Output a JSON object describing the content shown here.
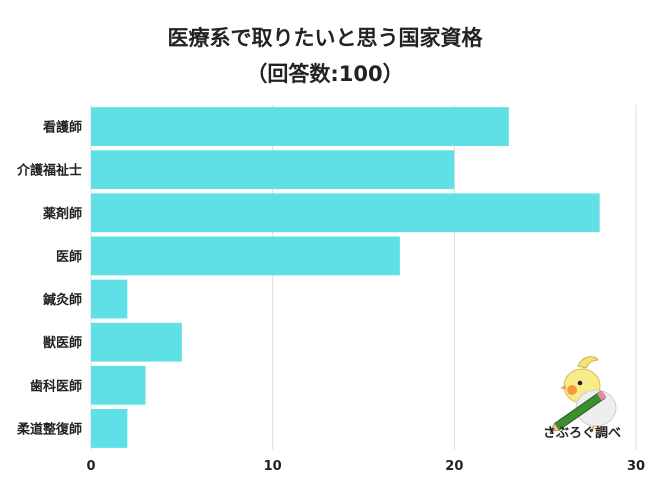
{
  "title": {
    "line1": "医療系で取りたいと思う国家資格",
    "line2": "（回答数:100）"
  },
  "chart_data": {
    "type": "bar",
    "orientation": "horizontal",
    "categories": [
      "看護師",
      "介護福祉士",
      "薬剤師",
      "医師",
      "鍼灸師",
      "獣医師",
      "歯科医師",
      "柔道整復師"
    ],
    "values": [
      23,
      20,
      28,
      17,
      2,
      5,
      3,
      2
    ],
    "xlim": [
      0,
      30
    ],
    "xticks": [
      "0",
      "10",
      "20",
      "30"
    ],
    "grid": "vertical",
    "bar_color": "#5ee0e6"
  },
  "brand": {
    "name": "さぶろぐ調べ",
    "mascot_icon": "cockatiel-with-pencil-icon"
  }
}
